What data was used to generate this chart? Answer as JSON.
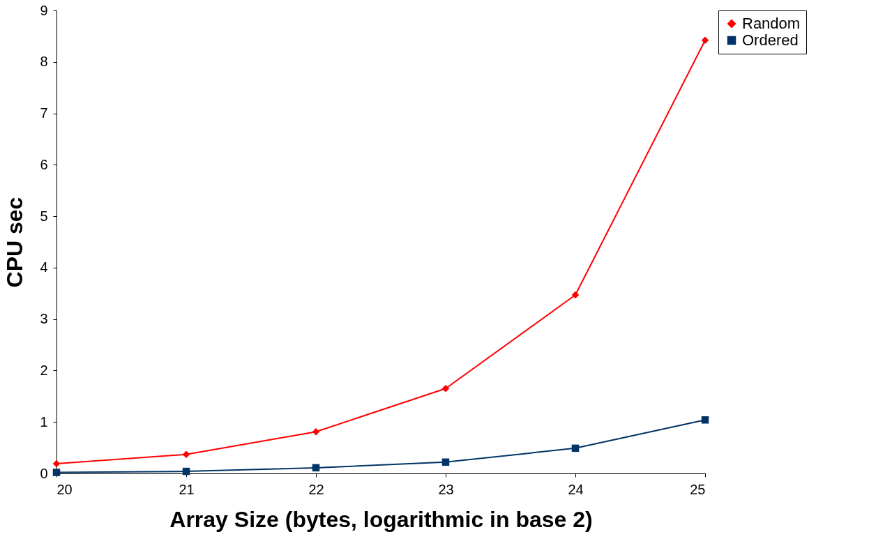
{
  "chart_data": {
    "type": "line",
    "xlabel": "Array Size (bytes, logarithmic in base 2)",
    "ylabel": "CPU sec",
    "x": [
      20,
      21,
      22,
      23,
      24,
      25
    ],
    "series": [
      {
        "name": "Random",
        "color": "#ff0000",
        "marker": "diamond",
        "values": [
          0.19,
          0.37,
          0.81,
          1.65,
          3.47,
          8.42
        ]
      },
      {
        "name": "Ordered",
        "color": "#003366",
        "marker": "square",
        "values": [
          0.02,
          0.04,
          0.11,
          0.22,
          0.49,
          1.04
        ]
      }
    ],
    "xlim": [
      20,
      25
    ],
    "xticks": [
      20,
      21,
      22,
      23,
      24,
      25
    ],
    "ylim": [
      0,
      9
    ],
    "yticks": [
      0,
      1,
      2,
      3,
      4,
      5,
      6,
      7,
      8,
      9
    ],
    "grid": false,
    "legend": "right",
    "line_style": "solid"
  }
}
